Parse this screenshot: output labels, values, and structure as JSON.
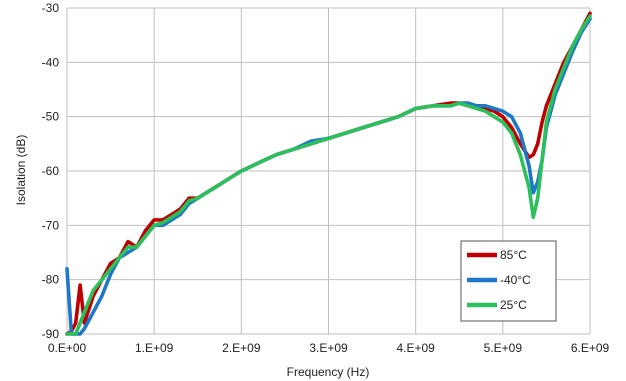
{
  "chart_data": {
    "type": "line",
    "title": "",
    "xlabel": "Frequency (Hz)",
    "ylabel": "Isolation (dB)",
    "xlim": [
      0,
      6000000000
    ],
    "ylim": [
      -90,
      -30
    ],
    "x_ticks": [
      0,
      1000000000,
      2000000000,
      3000000000,
      4000000000,
      5000000000,
      6000000000
    ],
    "x_tick_labels": [
      "0.E+00",
      "1.E+09",
      "2.E+09",
      "3.E+09",
      "4.E+09",
      "5.E+09",
      "6.E+09"
    ],
    "y_ticks": [
      -90,
      -80,
      -70,
      -60,
      -50,
      -40,
      -30
    ],
    "y_tick_labels": [
      "-90",
      "-80",
      "-70",
      "-60",
      "-50",
      "-40",
      "-30"
    ],
    "grid": true,
    "legend_position": "bottom-right",
    "series": [
      {
        "name": "85°C",
        "color": "#c00000",
        "x": [
          0,
          50000000,
          100000000,
          150000000,
          200000000,
          300000000,
          400000000,
          500000000,
          600000000,
          700000000,
          800000000,
          900000000,
          1000000000,
          1100000000,
          1200000000,
          1300000000,
          1400000000,
          1500000000,
          1600000000,
          1700000000,
          1800000000,
          1900000000,
          2000000000,
          2200000000,
          2400000000,
          2600000000,
          2800000000,
          3000000000,
          3200000000,
          3400000000,
          3600000000,
          3800000000,
          4000000000,
          4200000000,
          4400000000,
          4500000000,
          4600000000,
          4700000000,
          4800000000,
          4900000000,
          5000000000,
          5100000000,
          5200000000,
          5300000000,
          5350000000,
          5400000000,
          5450000000,
          5500000000,
          5600000000,
          5700000000,
          5800000000,
          5900000000,
          6000000000
        ],
        "y": [
          -90,
          -89.5,
          -88,
          -81,
          -88,
          -83,
          -80,
          -77,
          -76,
          -73,
          -74,
          -71,
          -69,
          -69,
          -68,
          -67,
          -65,
          -65,
          -64,
          -63,
          -62,
          -61,
          -60,
          -58.5,
          -57,
          -56,
          -55,
          -54,
          -53,
          -52,
          -51,
          -50,
          -48.5,
          -48,
          -47.5,
          -47.5,
          -48,
          -48,
          -48.5,
          -49,
          -50,
          -52,
          -55,
          -57.5,
          -57,
          -55,
          -51,
          -48,
          -44,
          -40,
          -37,
          -34,
          -31
        ]
      },
      {
        "name": "-40°C",
        "color": "#1f77c8",
        "x": [
          0,
          50000000,
          100000000,
          150000000,
          200000000,
          300000000,
          400000000,
          500000000,
          600000000,
          700000000,
          800000000,
          900000000,
          1000000000,
          1100000000,
          1200000000,
          1300000000,
          1400000000,
          1500000000,
          1600000000,
          1700000000,
          1800000000,
          1900000000,
          2000000000,
          2200000000,
          2400000000,
          2600000000,
          2800000000,
          3000000000,
          3200000000,
          3400000000,
          3600000000,
          3800000000,
          4000000000,
          4200000000,
          4400000000,
          4500000000,
          4600000000,
          4700000000,
          4800000000,
          4900000000,
          5000000000,
          5100000000,
          5200000000,
          5300000000,
          5350000000,
          5400000000,
          5450000000,
          5500000000,
          5600000000,
          5700000000,
          5800000000,
          5900000000,
          6000000000
        ],
        "y": [
          -78,
          -90,
          -90,
          -90,
          -89,
          -86,
          -83,
          -79,
          -76,
          -75,
          -74,
          -72,
          -70,
          -70,
          -69,
          -68,
          -66,
          -65,
          -64,
          -63,
          -62,
          -61,
          -60,
          -58.5,
          -57,
          -56,
          -54.5,
          -54,
          -53,
          -52,
          -51,
          -50,
          -48.5,
          -48,
          -48,
          -47.5,
          -47.5,
          -48,
          -48,
          -48.5,
          -49,
          -50,
          -53,
          -59,
          -64,
          -62,
          -58,
          -52,
          -46,
          -42,
          -38,
          -34.5,
          -32
        ]
      },
      {
        "name": "25°C",
        "color": "#2cc05c",
        "x": [
          0,
          50000000,
          100000000,
          150000000,
          200000000,
          300000000,
          400000000,
          500000000,
          600000000,
          700000000,
          800000000,
          900000000,
          1000000000,
          1100000000,
          1200000000,
          1300000000,
          1400000000,
          1500000000,
          1600000000,
          1700000000,
          1800000000,
          1900000000,
          2000000000,
          2200000000,
          2400000000,
          2600000000,
          2800000000,
          3000000000,
          3200000000,
          3400000000,
          3600000000,
          3800000000,
          4000000000,
          4200000000,
          4400000000,
          4500000000,
          4600000000,
          4700000000,
          4800000000,
          4900000000,
          5000000000,
          5100000000,
          5200000000,
          5300000000,
          5350000000,
          5400000000,
          5450000000,
          5500000000,
          5600000000,
          5700000000,
          5800000000,
          5900000000,
          6000000000
        ],
        "y": [
          -90,
          -90,
          -90,
          -88,
          -86,
          -82,
          -80,
          -78,
          -76,
          -74,
          -74,
          -72,
          -70,
          -69.5,
          -68.5,
          -67.5,
          -65.5,
          -65,
          -64,
          -63,
          -62,
          -61,
          -60,
          -58.5,
          -57,
          -56,
          -55,
          -54,
          -53,
          -52,
          -51,
          -50,
          -48.5,
          -48,
          -48,
          -47.5,
          -48,
          -48.5,
          -49,
          -50,
          -51,
          -53,
          -57,
          -63,
          -68.5,
          -65,
          -58,
          -51,
          -45,
          -41,
          -37,
          -34,
          -31.5
        ]
      }
    ]
  }
}
